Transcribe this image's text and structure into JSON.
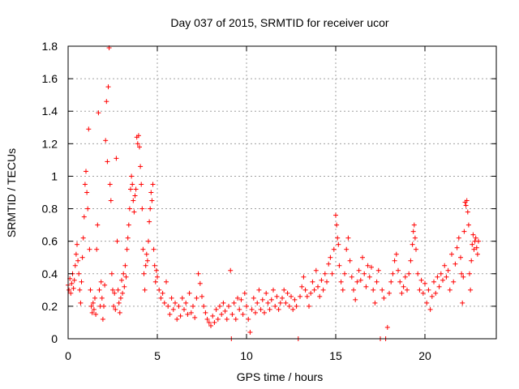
{
  "chart_data": {
    "type": "scatter",
    "title": "Day 037 of 2015, SRMTID for receiver ucor",
    "xlabel": "GPS time / hours",
    "ylabel": "SRMTID / TECUs",
    "xlim": [
      0,
      24
    ],
    "ylim": [
      0,
      1.8
    ],
    "grid": true,
    "marker": "+",
    "color": "#ff0000",
    "x_ticks": [
      0,
      5,
      10,
      15,
      20
    ],
    "x_tick_labels": [
      "0",
      "5",
      "10",
      "15",
      "20"
    ],
    "y_ticks": [
      0,
      0.2,
      0.4,
      0.6,
      0.8,
      1,
      1.2,
      1.4,
      1.6,
      1.8
    ],
    "y_tick_labels": [
      "0",
      "0.2",
      "0.4",
      "0.6",
      "0.8",
      "1",
      "1.2",
      "1.4",
      "1.6",
      "1.8"
    ],
    "series": [
      {
        "name": "SRMTID",
        "points": [
          [
            0.0,
            0.33
          ],
          [
            0.05,
            0.3
          ],
          [
            0.1,
            0.37
          ],
          [
            0.15,
            0.28
          ],
          [
            0.2,
            0.34
          ],
          [
            0.25,
            0.4
          ],
          [
            0.3,
            0.31
          ],
          [
            0.35,
            0.36
          ],
          [
            0.4,
            0.45
          ],
          [
            0.45,
            0.52
          ],
          [
            0.5,
            0.58
          ],
          [
            0.55,
            0.48
          ],
          [
            0.6,
            0.4
          ],
          [
            0.65,
            0.3
          ],
          [
            0.7,
            0.22
          ],
          [
            0.75,
            0.35
          ],
          [
            0.8,
            0.5
          ],
          [
            0.85,
            0.62
          ],
          [
            0.9,
            0.75
          ],
          [
            0.95,
            0.95
          ],
          [
            1.0,
            1.03
          ],
          [
            1.05,
            0.9
          ],
          [
            1.1,
            0.8
          ],
          [
            1.15,
            1.29
          ],
          [
            1.2,
            0.55
          ],
          [
            1.25,
            0.3
          ],
          [
            1.3,
            0.2
          ],
          [
            1.35,
            0.16
          ],
          [
            1.4,
            0.22
          ],
          [
            1.45,
            0.18
          ],
          [
            1.5,
            0.25
          ],
          [
            1.55,
            0.15
          ],
          [
            1.6,
            0.55
          ],
          [
            1.65,
            0.7
          ],
          [
            1.7,
            1.39
          ],
          [
            1.75,
            0.3
          ],
          [
            1.8,
            0.2
          ],
          [
            1.85,
            0.35
          ],
          [
            1.9,
            0.25
          ],
          [
            1.95,
            0.12
          ],
          [
            2.0,
            0.2
          ],
          [
            2.05,
            0.33
          ],
          [
            2.1,
            1.22
          ],
          [
            2.15,
            1.46
          ],
          [
            2.2,
            1.09
          ],
          [
            2.25,
            1.55
          ],
          [
            2.3,
            1.79
          ],
          [
            2.35,
            0.95
          ],
          [
            2.4,
            0.85
          ],
          [
            2.45,
            0.4
          ],
          [
            2.5,
            0.3
          ],
          [
            2.55,
            0.2
          ],
          [
            2.6,
            0.28
          ],
          [
            2.65,
            0.18
          ],
          [
            2.7,
            1.11
          ],
          [
            2.75,
            0.6
          ],
          [
            2.8,
            0.3
          ],
          [
            2.85,
            0.22
          ],
          [
            2.9,
            0.16
          ],
          [
            2.95,
            0.25
          ],
          [
            3.0,
            0.36
          ],
          [
            3.05,
            0.28
          ],
          [
            3.1,
            0.4
          ],
          [
            3.15,
            0.32
          ],
          [
            3.2,
            0.45
          ],
          [
            3.25,
            0.38
          ],
          [
            3.3,
            0.55
          ],
          [
            3.35,
            0.62
          ],
          [
            3.4,
            0.7
          ],
          [
            3.45,
            0.8
          ],
          [
            3.5,
            0.92
          ],
          [
            3.55,
            1.0
          ],
          [
            3.6,
            0.95
          ],
          [
            3.65,
            0.85
          ],
          [
            3.7,
            0.78
          ],
          [
            3.75,
            0.88
          ],
          [
            3.8,
            0.92
          ],
          [
            3.85,
            1.24
          ],
          [
            3.9,
            1.2
          ],
          [
            3.95,
            1.25
          ],
          [
            4.0,
            1.18
          ],
          [
            4.05,
            1.06
          ],
          [
            4.1,
            0.95
          ],
          [
            4.15,
            0.8
          ],
          [
            4.2,
            0.55
          ],
          [
            4.25,
            0.4
          ],
          [
            4.3,
            0.3
          ],
          [
            4.35,
            0.45
          ],
          [
            4.4,
            0.52
          ],
          [
            4.45,
            0.48
          ],
          [
            4.5,
            0.6
          ],
          [
            4.55,
            0.72
          ],
          [
            4.6,
            0.8
          ],
          [
            4.65,
            0.9
          ],
          [
            4.7,
            0.85
          ],
          [
            4.75,
            0.95
          ],
          [
            4.8,
            0.55
          ],
          [
            4.85,
            0.45
          ],
          [
            4.9,
            0.35
          ],
          [
            4.95,
            0.42
          ],
          [
            5.0,
            0.38
          ],
          [
            5.1,
            0.3
          ],
          [
            5.2,
            0.25
          ],
          [
            5.3,
            0.28
          ],
          [
            5.4,
            0.22
          ],
          [
            5.5,
            0.35
          ],
          [
            5.6,
            0.2
          ],
          [
            5.7,
            0.15
          ],
          [
            5.8,
            0.25
          ],
          [
            5.9,
            0.18
          ],
          [
            6.0,
            0.22
          ],
          [
            6.1,
            0.12
          ],
          [
            6.2,
            0.2
          ],
          [
            6.3,
            0.14
          ],
          [
            6.4,
            0.25
          ],
          [
            6.5,
            0.18
          ],
          [
            6.6,
            0.22
          ],
          [
            6.7,
            0.15
          ],
          [
            6.8,
            0.28
          ],
          [
            6.9,
            0.16
          ],
          [
            7.0,
            0.2
          ],
          [
            7.1,
            0.13
          ],
          [
            7.2,
            0.25
          ],
          [
            7.3,
            0.4
          ],
          [
            7.4,
            0.34
          ],
          [
            7.5,
            0.26
          ],
          [
            7.6,
            0.2
          ],
          [
            7.7,
            0.16
          ],
          [
            7.8,
            0.12
          ],
          [
            7.9,
            0.1
          ],
          [
            8.0,
            0.08
          ],
          [
            8.1,
            0.14
          ],
          [
            8.2,
            0.1
          ],
          [
            8.3,
            0.18
          ],
          [
            8.4,
            0.12
          ],
          [
            8.5,
            0.2
          ],
          [
            8.6,
            0.15
          ],
          [
            8.7,
            0.22
          ],
          [
            8.8,
            0.17
          ],
          [
            8.9,
            0.12
          ],
          [
            9.0,
            0.2
          ],
          [
            9.1,
            0.42
          ],
          [
            9.15,
            0.0
          ],
          [
            9.2,
            0.15
          ],
          [
            9.3,
            0.22
          ],
          [
            9.4,
            0.12
          ],
          [
            9.5,
            0.25
          ],
          [
            9.6,
            0.18
          ],
          [
            9.7,
            0.24
          ],
          [
            9.8,
            0.15
          ],
          [
            9.9,
            0.28
          ],
          [
            10.0,
            0.2
          ],
          [
            10.1,
            0.12
          ],
          [
            10.2,
            0.04
          ],
          [
            10.3,
            0.18
          ],
          [
            10.4,
            0.25
          ],
          [
            10.5,
            0.16
          ],
          [
            10.6,
            0.22
          ],
          [
            10.7,
            0.3
          ],
          [
            10.8,
            0.18
          ],
          [
            10.9,
            0.24
          ],
          [
            11.0,
            0.16
          ],
          [
            11.1,
            0.28
          ],
          [
            11.2,
            0.22
          ],
          [
            11.3,
            0.18
          ],
          [
            11.4,
            0.24
          ],
          [
            11.5,
            0.3
          ],
          [
            11.6,
            0.2
          ],
          [
            11.7,
            0.26
          ],
          [
            11.8,
            0.18
          ],
          [
            11.9,
            0.22
          ],
          [
            12.0,
            0.25
          ],
          [
            12.1,
            0.3
          ],
          [
            12.2,
            0.22
          ],
          [
            12.3,
            0.28
          ],
          [
            12.4,
            0.2
          ],
          [
            12.5,
            0.26
          ],
          [
            12.6,
            0.18
          ],
          [
            12.7,
            0.24
          ],
          [
            12.8,
            0.2
          ],
          [
            12.9,
            0.0
          ],
          [
            13.0,
            0.26
          ],
          [
            13.1,
            0.32
          ],
          [
            13.2,
            0.38
          ],
          [
            13.3,
            0.3
          ],
          [
            13.4,
            0.26
          ],
          [
            13.5,
            0.2
          ],
          [
            13.6,
            0.28
          ],
          [
            13.7,
            0.35
          ],
          [
            13.8,
            0.3
          ],
          [
            13.9,
            0.42
          ],
          [
            14.0,
            0.32
          ],
          [
            14.1,
            0.26
          ],
          [
            14.2,
            0.36
          ],
          [
            14.3,
            0.3
          ],
          [
            14.4,
            0.4
          ],
          [
            14.5,
            0.35
          ],
          [
            14.6,
            0.46
          ],
          [
            14.7,
            0.5
          ],
          [
            14.8,
            0.4
          ],
          [
            14.9,
            0.55
          ],
          [
            15.0,
            0.76
          ],
          [
            15.05,
            0.7
          ],
          [
            15.1,
            0.62
          ],
          [
            15.15,
            0.58
          ],
          [
            15.2,
            0.45
          ],
          [
            15.3,
            0.35
          ],
          [
            15.4,
            0.3
          ],
          [
            15.5,
            0.4
          ],
          [
            15.6,
            0.55
          ],
          [
            15.7,
            0.62
          ],
          [
            15.8,
            0.48
          ],
          [
            15.9,
            0.38
          ],
          [
            16.0,
            0.3
          ],
          [
            16.1,
            0.24
          ],
          [
            16.2,
            0.35
          ],
          [
            16.3,
            0.42
          ],
          [
            16.4,
            0.36
          ],
          [
            16.5,
            0.5
          ],
          [
            16.6,
            0.4
          ],
          [
            16.7,
            0.32
          ],
          [
            16.8,
            0.45
          ],
          [
            16.9,
            0.38
          ],
          [
            17.0,
            0.44
          ],
          [
            17.1,
            0.3
          ],
          [
            17.2,
            0.22
          ],
          [
            17.3,
            0.35
          ],
          [
            17.4,
            0.42
          ],
          [
            17.5,
            0.0
          ],
          [
            17.6,
            0.3
          ],
          [
            17.7,
            0.25
          ],
          [
            17.8,
            0.0
          ],
          [
            17.9,
            0.07
          ],
          [
            18.0,
            0.28
          ],
          [
            18.1,
            0.35
          ],
          [
            18.2,
            0.4
          ],
          [
            18.3,
            0.48
          ],
          [
            18.4,
            0.52
          ],
          [
            18.5,
            0.42
          ],
          [
            18.6,
            0.35
          ],
          [
            18.7,
            0.28
          ],
          [
            18.8,
            0.32
          ],
          [
            18.9,
            0.38
          ],
          [
            19.0,
            0.3
          ],
          [
            19.1,
            0.4
          ],
          [
            19.2,
            0.48
          ],
          [
            19.3,
            0.58
          ],
          [
            19.35,
            0.66
          ],
          [
            19.4,
            0.7
          ],
          [
            19.45,
            0.62
          ],
          [
            19.5,
            0.55
          ],
          [
            19.6,
            0.4
          ],
          [
            19.7,
            0.3
          ],
          [
            19.8,
            0.36
          ],
          [
            19.9,
            0.28
          ],
          [
            20.0,
            0.34
          ],
          [
            20.1,
            0.22
          ],
          [
            20.2,
            0.3
          ],
          [
            20.3,
            0.18
          ],
          [
            20.4,
            0.26
          ],
          [
            20.5,
            0.35
          ],
          [
            20.6,
            0.28
          ],
          [
            20.7,
            0.38
          ],
          [
            20.8,
            0.32
          ],
          [
            20.9,
            0.4
          ],
          [
            21.0,
            0.36
          ],
          [
            21.1,
            0.45
          ],
          [
            21.2,
            0.38
          ],
          [
            21.3,
            0.42
          ],
          [
            21.4,
            0.3
          ],
          [
            21.5,
            0.52
          ],
          [
            21.6,
            0.35
          ],
          [
            21.7,
            0.46
          ],
          [
            21.8,
            0.56
          ],
          [
            21.9,
            0.62
          ],
          [
            22.0,
            0.5
          ],
          [
            22.05,
            0.4
          ],
          [
            22.1,
            0.22
          ],
          [
            22.15,
            0.38
          ],
          [
            22.2,
            0.66
          ],
          [
            22.25,
            0.84
          ],
          [
            22.3,
            0.82
          ],
          [
            22.35,
            0.85
          ],
          [
            22.4,
            0.78
          ],
          [
            22.45,
            0.7
          ],
          [
            22.5,
            0.4
          ],
          [
            22.55,
            0.3
          ],
          [
            22.6,
            0.48
          ],
          [
            22.65,
            0.58
          ],
          [
            22.7,
            0.64
          ],
          [
            22.75,
            0.55
          ],
          [
            22.8,
            0.6
          ],
          [
            22.85,
            0.62
          ],
          [
            22.9,
            0.56
          ],
          [
            22.95,
            0.52
          ],
          [
            23.0,
            0.6
          ]
        ]
      }
    ]
  }
}
